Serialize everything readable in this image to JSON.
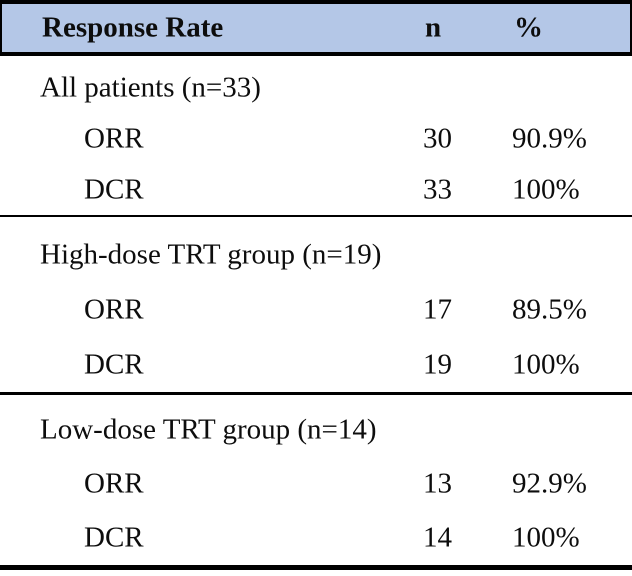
{
  "colors": {
    "header_background": "#B4C7E7",
    "border": "#000000",
    "text": "#0d0d0d"
  },
  "table": {
    "header": {
      "label": "Response Rate",
      "n": "n",
      "pct": "%"
    },
    "sections": [
      {
        "title": "All patients (n=33)",
        "rows": [
          {
            "label": "ORR",
            "n": "30",
            "pct": "90.9%"
          },
          {
            "label": "DCR",
            "n": "33",
            "pct": "100%"
          }
        ]
      },
      {
        "title": "High-dose TRT group (n=19)",
        "rows": [
          {
            "label": "ORR",
            "n": "17",
            "pct": "89.5%"
          },
          {
            "label": "DCR",
            "n": "19",
            "pct": "100%"
          }
        ]
      },
      {
        "title": "Low-dose TRT group (n=14)",
        "rows": [
          {
            "label": "ORR",
            "n": "13",
            "pct": "92.9%"
          },
          {
            "label": "DCR",
            "n": "14",
            "pct": "100%"
          }
        ]
      }
    ]
  }
}
